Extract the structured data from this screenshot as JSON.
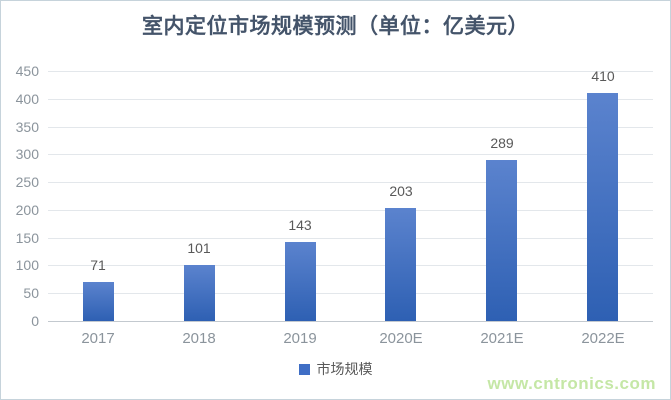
{
  "chart_data": {
    "type": "bar",
    "title": "室内定位市场规模预测（单位：亿美元）",
    "categories": [
      "2017",
      "2018",
      "2019",
      "2020E",
      "2021E",
      "2022E"
    ],
    "values": [
      71,
      101,
      143,
      203,
      289,
      410
    ],
    "series_name": "市场规模",
    "xlabel": "",
    "ylabel": "",
    "ylim": [
      0,
      450
    ],
    "yticks": [
      0,
      50,
      100,
      150,
      200,
      250,
      300,
      350,
      400,
      450
    ],
    "grid": true,
    "data_labels": true,
    "legend_position": "bottom"
  },
  "legend": {
    "label": "市场规模",
    "marker_color": "#3f6ec5"
  },
  "watermark": {
    "text": "www.cntronics.com",
    "color": "#c5e7a6"
  },
  "colors": {
    "title": "#44546a",
    "bar_gradient_top": "#5b83ce",
    "bar_gradient_bottom": "#2e60b3",
    "gridline": "#e3e7eb",
    "axis_line": "#c3c9cf",
    "tick_label": "#8b949c",
    "data_label": "#595959",
    "border": "#c6d3db",
    "background": "#ffffff"
  }
}
